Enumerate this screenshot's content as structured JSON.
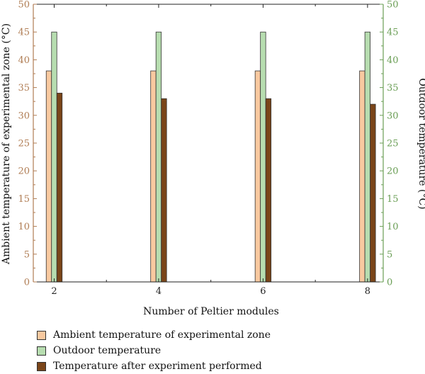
{
  "chart_data": {
    "type": "bar",
    "categories": [
      "2",
      "4",
      "6",
      "8"
    ],
    "x_ticks": [
      "2",
      "4",
      "6",
      "8"
    ],
    "xlabel": "Number of Peltier modules",
    "ylabel_left": "Ambient temperature of experimental zone (°C)",
    "ylabel_right": "Outdoor temperature (°C)",
    "ylim": [
      0,
      50
    ],
    "yticks": [
      "0",
      "5",
      "10",
      "15",
      "20",
      "25",
      "30",
      "35",
      "40",
      "45",
      "50"
    ],
    "series": [
      {
        "name": "Ambient temperature of experimental zone",
        "values": [
          38,
          38,
          38,
          38
        ],
        "color": "#f8c9a0"
      },
      {
        "name": "Outdoor temperature",
        "values": [
          45,
          45,
          45,
          45
        ],
        "color": "#b7ddb0"
      },
      {
        "name": "Temperature after experiment performed",
        "values": [
          34,
          33,
          33,
          32
        ],
        "color": "#7a4519"
      }
    ],
    "legend_position": "bottom-left",
    "left_axis_color": "#b07d54",
    "right_axis_color": "#6a9e55",
    "grid": false
  }
}
